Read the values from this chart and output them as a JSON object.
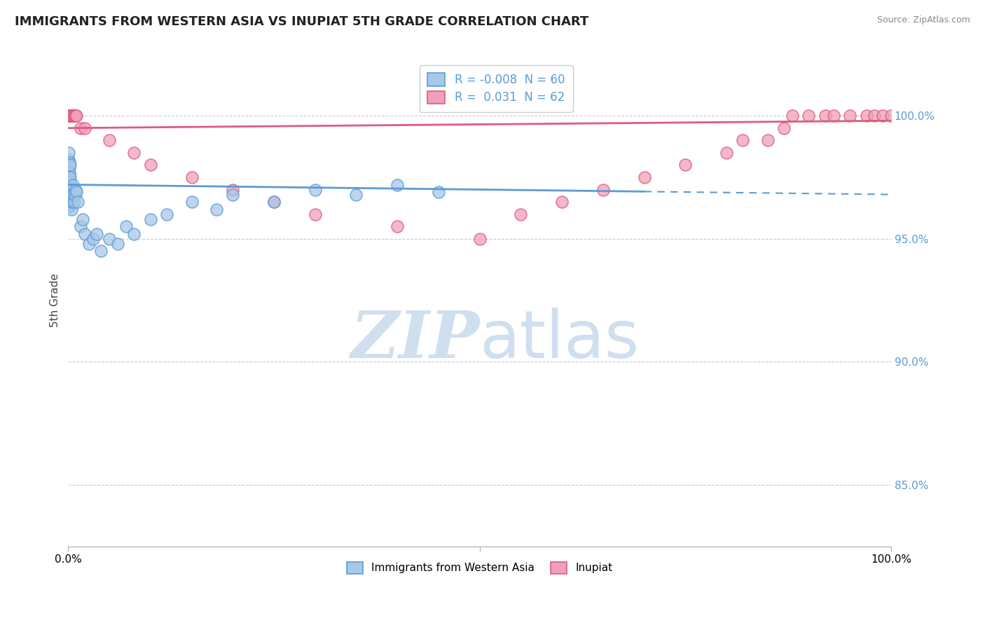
{
  "title": "IMMIGRANTS FROM WESTERN ASIA VS INUPIAT 5TH GRADE CORRELATION CHART",
  "source_text": "Source: ZipAtlas.com",
  "ylabel": "5th Grade",
  "right_yticks": [
    85.0,
    90.0,
    95.0,
    100.0
  ],
  "xlim": [
    0.0,
    100.0
  ],
  "ylim": [
    82.5,
    102.5
  ],
  "blue_R": -0.008,
  "blue_N": 60,
  "pink_R": 0.031,
  "pink_N": 62,
  "blue_line_color": "#5b9bd5",
  "pink_line_color": "#e05a80",
  "blue_dot_facecolor": "#a8c8e8",
  "blue_dot_edgecolor": "#5b9bd5",
  "pink_dot_facecolor": "#f0a0b8",
  "pink_dot_edgecolor": "#e05a80",
  "watermark_color": "#d0dff0",
  "background_color": "#ffffff",
  "grid_color": "#cccccc",
  "blue_scatter_x": [
    0.0,
    0.02,
    0.03,
    0.05,
    0.05,
    0.06,
    0.07,
    0.08,
    0.09,
    0.1,
    0.1,
    0.12,
    0.13,
    0.14,
    0.15,
    0.15,
    0.16,
    0.18,
    0.19,
    0.2,
    0.2,
    0.22,
    0.23,
    0.25,
    0.27,
    0.3,
    0.32,
    0.35,
    0.38,
    0.4,
    0.45,
    0.5,
    0.55,
    0.6,
    0.7,
    0.8,
    0.9,
    1.0,
    1.2,
    1.5,
    1.8,
    2.0,
    2.5,
    3.0,
    3.5,
    4.0,
    5.0,
    6.0,
    7.0,
    8.0,
    10.0,
    12.0,
    15.0,
    18.0,
    20.0,
    25.0,
    30.0,
    35.0,
    40.0,
    45.0
  ],
  "blue_scatter_y": [
    97.8,
    98.2,
    97.5,
    97.0,
    98.5,
    97.2,
    98.0,
    97.3,
    96.8,
    97.6,
    98.1,
    97.4,
    96.5,
    97.9,
    97.1,
    96.3,
    97.7,
    96.9,
    97.2,
    96.6,
    98.0,
    97.3,
    96.7,
    97.5,
    96.4,
    96.8,
    97.0,
    96.5,
    96.2,
    96.9,
    96.5,
    97.0,
    96.8,
    97.2,
    96.5,
    96.8,
    97.0,
    96.9,
    96.5,
    95.5,
    95.8,
    95.2,
    94.8,
    95.0,
    95.2,
    94.5,
    95.0,
    94.8,
    95.5,
    95.2,
    95.8,
    96.0,
    96.5,
    96.2,
    96.8,
    96.5,
    97.0,
    96.8,
    97.2,
    96.9
  ],
  "pink_scatter_x": [
    0.0,
    0.01,
    0.02,
    0.03,
    0.04,
    0.05,
    0.06,
    0.07,
    0.08,
    0.09,
    0.1,
    0.1,
    0.12,
    0.13,
    0.14,
    0.15,
    0.16,
    0.17,
    0.18,
    0.2,
    0.22,
    0.25,
    0.28,
    0.3,
    0.35,
    0.4,
    0.45,
    0.5,
    0.6,
    0.7,
    0.8,
    0.9,
    1.0,
    1.5,
    2.0,
    5.0,
    8.0,
    10.0,
    15.0,
    20.0,
    25.0,
    30.0,
    40.0,
    50.0,
    55.0,
    60.0,
    65.0,
    70.0,
    75.0,
    80.0,
    82.0,
    85.0,
    87.0,
    88.0,
    90.0,
    92.0,
    93.0,
    95.0,
    97.0,
    98.0,
    99.0,
    100.0
  ],
  "pink_scatter_y": [
    100.0,
    100.0,
    100.0,
    100.0,
    100.0,
    100.0,
    100.0,
    100.0,
    100.0,
    100.0,
    100.0,
    100.0,
    100.0,
    100.0,
    100.0,
    100.0,
    100.0,
    100.0,
    100.0,
    100.0,
    100.0,
    100.0,
    100.0,
    100.0,
    100.0,
    100.0,
    100.0,
    100.0,
    100.0,
    100.0,
    100.0,
    100.0,
    100.0,
    99.5,
    99.5,
    99.0,
    98.5,
    98.0,
    97.5,
    97.0,
    96.5,
    96.0,
    95.5,
    95.0,
    96.0,
    96.5,
    97.0,
    97.5,
    98.0,
    98.5,
    99.0,
    99.0,
    99.5,
    100.0,
    100.0,
    100.0,
    100.0,
    100.0,
    100.0,
    100.0,
    100.0,
    100.0
  ],
  "blue_trend_y_intercept": 97.2,
  "blue_trend_slope": -0.004,
  "pink_trend_y_intercept": 99.5,
  "pink_trend_slope": 0.003
}
